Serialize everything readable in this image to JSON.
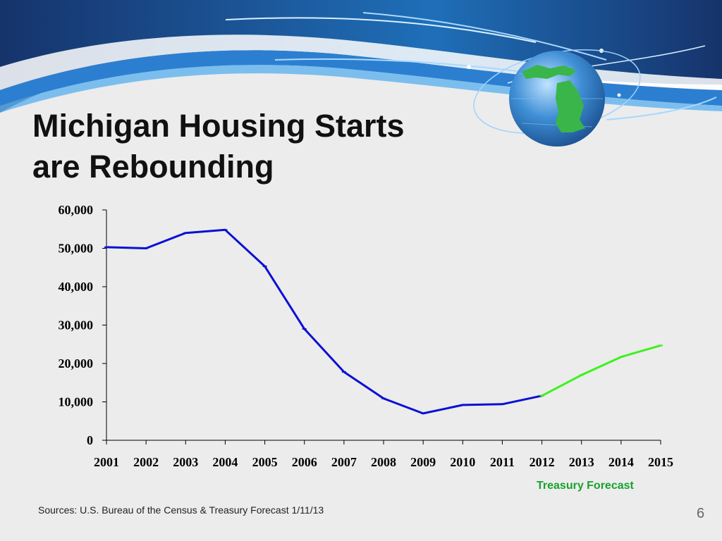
{
  "slide": {
    "title_line1": "Michigan Housing Starts",
    "title_line2": "are Rebounding",
    "forecast_label": "Treasury Forecast",
    "sources": "Sources: U.S. Bureau of the Census & Treasury Forecast 1/11/13",
    "page_number": "6"
  },
  "colors": {
    "actual_series": "#0a10d4",
    "forecast_series": "#3df21e",
    "forecast_label": "#17a22e",
    "banner_dark": "#16336b",
    "banner_mid": "#1f6fb8",
    "globe": "#2a7bc7",
    "michigan": "#39b54a"
  },
  "icons": [
    "globe-icon",
    "michigan-map-icon"
  ],
  "chart_data": {
    "type": "line",
    "x": [
      "2001",
      "2002",
      "2003",
      "2004",
      "2005",
      "2006",
      "2007",
      "2008",
      "2009",
      "2010",
      "2011",
      "2012",
      "2013",
      "2014",
      "2015"
    ],
    "ylim": [
      0,
      60000
    ],
    "yticks": [
      0,
      10000,
      20000,
      30000,
      40000,
      50000,
      60000
    ],
    "ytick_labels": [
      "0",
      "10,000",
      "20,000",
      "30,000",
      "40,000",
      "50,000",
      "60,000"
    ],
    "grid": false,
    "legend": "none",
    "series": [
      {
        "color": "#0a10d4",
        "x": [
          "2001",
          "2002",
          "2003",
          "2004",
          "2005",
          "2006",
          "2007",
          "2008",
          "2009",
          "2010",
          "2011",
          "2012"
        ],
        "values": [
          50300,
          50000,
          54000,
          54800,
          45300,
          29000,
          17800,
          10900,
          7000,
          9200,
          9400,
          11600
        ]
      },
      {
        "color": "#3df21e",
        "x": [
          "2012",
          "2013",
          "2014",
          "2015"
        ],
        "values": [
          11600,
          17000,
          21700,
          24700
        ]
      }
    ]
  }
}
